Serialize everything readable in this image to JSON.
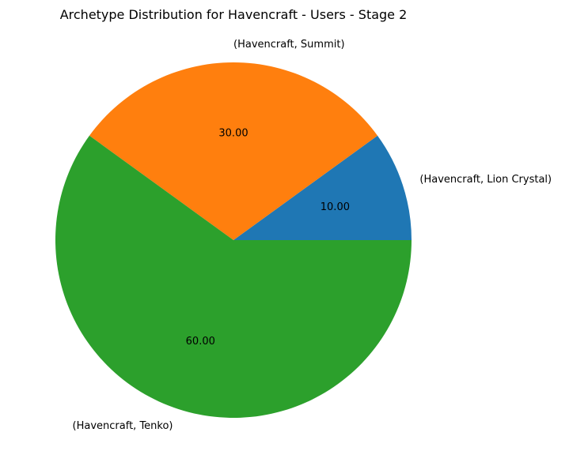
{
  "chart_data": {
    "type": "pie",
    "title": "Archetype Distribution for Havencraft - Users - Stage 2",
    "categories": [
      "(Havencraft, Lion Crystal)",
      "(Havencraft, Summit)",
      "(Havencraft, Tenko)"
    ],
    "values": [
      10,
      30,
      60
    ],
    "value_labels": [
      "10.00",
      "30.00",
      "60.00"
    ],
    "colors": [
      "#1f77b4",
      "#ff7f0e",
      "#2ca02c"
    ],
    "start_angle_deg": 0,
    "direction": "counterclockwise",
    "legend": "none"
  }
}
